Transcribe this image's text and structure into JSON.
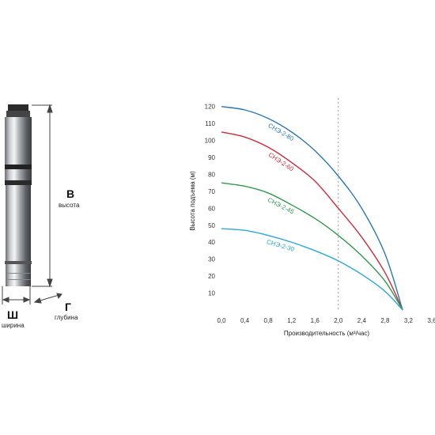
{
  "dimensions": {
    "height_letter": "В",
    "height_word": "высота",
    "width_letter": "Ш",
    "width_word": "ширина",
    "depth_letter": "Г",
    "depth_word": "глубина"
  },
  "chart_data": {
    "type": "line",
    "title": "",
    "xlabel": "Производительность (м³/час)",
    "ylabel": "Высота подъема (м)",
    "xlim": [
      0.0,
      3.6
    ],
    "ylim": [
      0,
      125
    ],
    "x_ticks": [
      "0,0",
      "0,4",
      "0,8",
      "1,2",
      "1,6",
      "2,0",
      "2,4",
      "2,8",
      "3,2",
      "3,6"
    ],
    "y_ticks": [
      "10",
      "20",
      "30",
      "40",
      "50",
      "60",
      "70",
      "80",
      "90",
      "100",
      "110",
      "120"
    ],
    "grid": "dashed vertical line at x = 2.0",
    "x": [
      0.0,
      0.4,
      0.8,
      1.2,
      1.6,
      2.0,
      2.4,
      2.8,
      3.1
    ],
    "series": [
      {
        "name": "СНЭ-2-80",
        "color": "#2a78b8",
        "values": [
          120,
          118,
          113,
          105,
          94,
          79,
          60,
          33,
          0
        ]
      },
      {
        "name": "СНЭ-2-60",
        "color": "#d02a3a",
        "values": [
          105,
          102,
          96,
          87,
          76,
          60,
          43,
          22,
          0
        ]
      },
      {
        "name": "СНЭ-2-45",
        "color": "#2e9a4e",
        "values": [
          75,
          73,
          69,
          62,
          54,
          44,
          32,
          17,
          0
        ]
      },
      {
        "name": "СНЭ-2-30",
        "color": "#2ba7d8",
        "values": [
          48,
          47,
          44,
          40,
          35,
          29,
          21,
          11,
          0
        ]
      }
    ]
  }
}
